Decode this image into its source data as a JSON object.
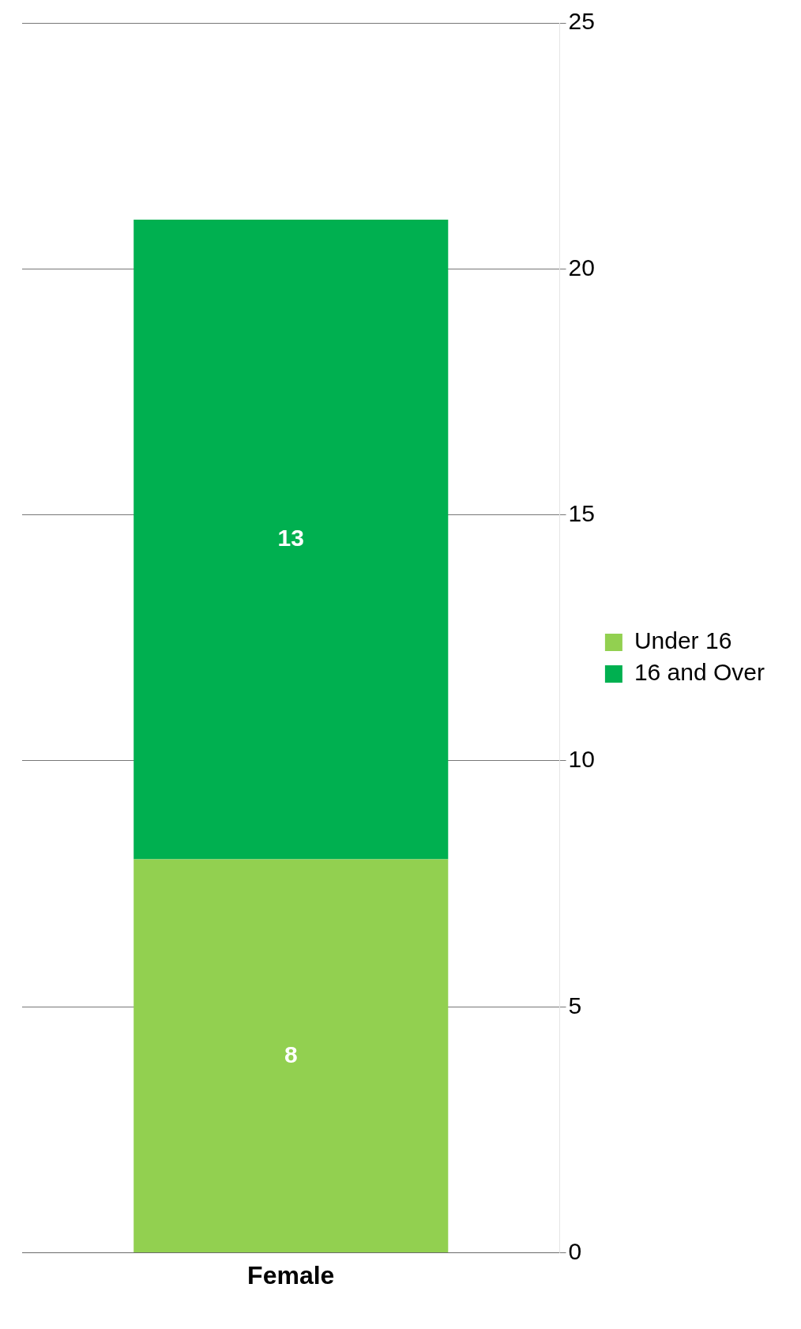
{
  "chart_data": {
    "type": "bar",
    "stacked": true,
    "categories": [
      "Female"
    ],
    "series": [
      {
        "name": "Under 16",
        "color": "#92d050",
        "values": [
          8
        ]
      },
      {
        "name": "16 and Over",
        "color": "#00b050",
        "values": [
          13
        ]
      }
    ],
    "ylim": [
      0,
      25
    ],
    "yticks": [
      0,
      5,
      10,
      15,
      20,
      25
    ],
    "grid": "y",
    "legend": "right",
    "data_labels": true
  }
}
